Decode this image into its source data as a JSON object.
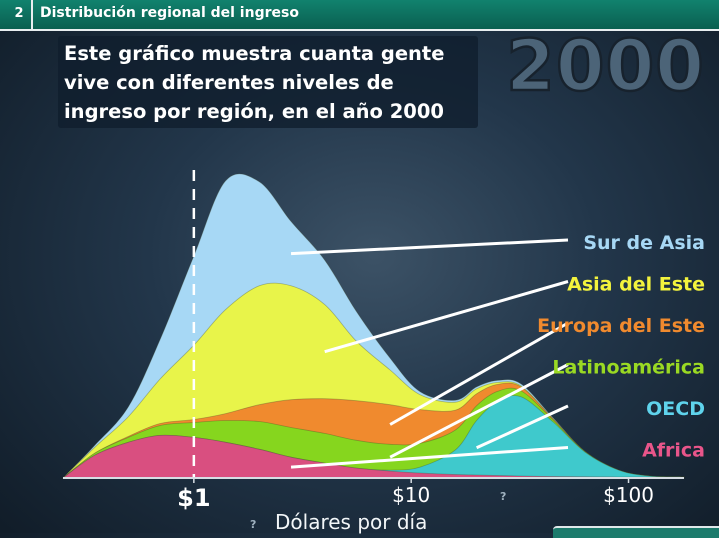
{
  "header": {
    "step_number": "2",
    "title": "Distribución regional del ingreso"
  },
  "description": "Este gráfico muestra cuanta gente vive con diferentes niveles de ingreso por región, en el año 2000",
  "year": "2000",
  "chart_data": {
    "type": "area",
    "stacked": true,
    "x_scale": "log",
    "x_unit": "USD per day",
    "x": [
      0.25,
      0.35,
      0.5,
      0.7,
      1.0,
      1.4,
      2.0,
      2.8,
      4.0,
      5.6,
      8.0,
      11,
      16,
      20,
      25,
      32,
      45,
      63,
      90,
      125,
      180
    ],
    "xlim": [
      0.25,
      180
    ],
    "xlabel": "Dólares por día",
    "ticks": [
      {
        "value": 1,
        "label": "$1"
      },
      {
        "value": 10,
        "label": "$10"
      },
      {
        "value": 100,
        "label": "$100"
      }
    ],
    "reference_line": {
      "x": 1
    },
    "series": [
      {
        "name": "Africa",
        "color": "#d94f80",
        "values": [
          9,
          22,
          35,
          42,
          40,
          35,
          28,
          20,
          14,
          9,
          6,
          4,
          2.5,
          2,
          1.5,
          1,
          0.5,
          0.2,
          0,
          0,
          0
        ]
      },
      {
        "name": "OECD",
        "color": "#3fc9cc",
        "values": [
          0,
          0,
          0,
          0,
          0,
          0,
          0,
          0,
          0,
          0,
          1,
          6,
          25,
          55,
          75,
          80,
          55,
          25,
          7,
          1,
          0
        ]
      },
      {
        "name": "Latinoamérica",
        "color": "#86d61e",
        "values": [
          0,
          2,
          5,
          10,
          15,
          22,
          28,
          30,
          30,
          28,
          26,
          24,
          20,
          15,
          10,
          6,
          2,
          0.5,
          0,
          0,
          0
        ]
      },
      {
        "name": "Europa del Este",
        "color": "#f08a2e",
        "values": [
          0,
          0,
          1,
          2,
          3,
          7,
          17,
          28,
          35,
          40,
          40,
          34,
          20,
          12,
          7,
          4,
          1,
          0,
          0,
          0,
          0
        ]
      },
      {
        "name": "Asia del Este",
        "color": "#e8f44a",
        "values": [
          1,
          6,
          20,
          45,
          75,
          105,
          120,
          115,
          95,
          60,
          35,
          15,
          8,
          5,
          2,
          1,
          0.2,
          0,
          0,
          0,
          0
        ]
      },
      {
        "name": "Sur de Asia",
        "color": "#a7d8f5",
        "values": [
          0,
          2,
          10,
          40,
          90,
          130,
          105,
          65,
          45,
          30,
          12,
          3,
          2,
          2,
          2,
          2,
          1,
          0.3,
          0,
          0,
          0
        ]
      }
    ],
    "ylim": [
      0,
      320
    ],
    "legend": [
      {
        "name": "Sur de Asia",
        "color": "#a7d8f5"
      },
      {
        "name": "Asia del Este",
        "color": "#f3f33d"
      },
      {
        "name": "Europa del Este",
        "color": "#f08a2e"
      },
      {
        "name": "Latinoamérica",
        "color": "#9ad923"
      },
      {
        "name": "OECD",
        "color": "#5fd3ec"
      },
      {
        "name": "Africa",
        "color": "#e9558a"
      }
    ]
  }
}
